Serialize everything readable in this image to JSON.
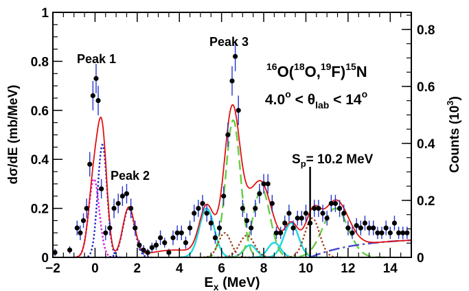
{
  "chart_data": {
    "type": "scatter",
    "xlabel": "E",
    "xlabel_sub": "x",
    "xlabel_unit": " (MeV)",
    "ylabel": "dσ/dE (mb/MeV)",
    "y2label": "Counts (10",
    "y2label_sup": "3",
    "y2label_end": ")",
    "xlim": [
      -2,
      15
    ],
    "ylim": [
      0,
      1
    ],
    "y2lim": [
      0,
      0.86
    ],
    "xticks": [
      "−2",
      "0",
      "2",
      "4",
      "6",
      "8",
      "10",
      "12",
      "14"
    ],
    "xtick_values": [
      -2,
      0,
      2,
      4,
      6,
      8,
      10,
      12,
      14
    ],
    "yticks": [
      "0",
      "0.2",
      "0.4",
      "0.6",
      "0.8",
      "1"
    ],
    "ytick_values": [
      0,
      0.2,
      0.4,
      0.6,
      0.8,
      1.0
    ],
    "y2ticks": [
      "0",
      "0.2",
      "0.4",
      "0.6",
      "0.8"
    ],
    "y2tick_values": [
      0,
      0.2,
      0.4,
      0.6,
      0.8
    ],
    "reaction_label": {
      "a": "16",
      "b": "O(",
      "c": "18",
      "d": "O,",
      "e": "19",
      "f": "F)",
      "g": "15",
      "h": "N"
    },
    "angle_label": {
      "a": "4.0",
      "b": "o",
      "c": " < θ",
      "d": "lab",
      "e": " < 14",
      "f": "o"
    },
    "annotations": {
      "peak1": "Peak 1",
      "peak2": "Peak 2",
      "peak3": "Peak 3",
      "sp_s": "S",
      "sp_sub": "p",
      "sp_rest": "= 10.2 MeV",
      "sp_x": 10.2,
      "sp_line_top": 0.4
    },
    "data_points": {
      "x": [
        -1.9,
        -1.2,
        -0.85,
        -0.7,
        -0.55,
        -0.4,
        -0.25,
        -0.1,
        0.05,
        0.15,
        0.3,
        0.5,
        0.7,
        0.9,
        1.1,
        1.3,
        1.5,
        1.7,
        1.9,
        2.1,
        2.3,
        2.5,
        2.7,
        2.9,
        3.1,
        3.3,
        3.5,
        3.7,
        3.9,
        4.1,
        4.3,
        4.5,
        4.7,
        4.9,
        5.1,
        5.3,
        5.5,
        5.7,
        5.9,
        6.1,
        6.3,
        6.5,
        6.65,
        6.8,
        7.0,
        7.2,
        7.4,
        7.6,
        7.8,
        8.0,
        8.2,
        8.4,
        8.6,
        8.8,
        9.0,
        9.2,
        9.4,
        9.6,
        9.8,
        10.0,
        10.2,
        10.4,
        10.6,
        10.8,
        11.0,
        11.2,
        11.4,
        11.6,
        11.8,
        12.0,
        12.2,
        12.4,
        12.6,
        12.8,
        13.0,
        13.2,
        13.4,
        13.6,
        13.8,
        14.0,
        14.2,
        14.4,
        14.6,
        14.8
      ],
      "y": [
        0.02,
        0.03,
        0.12,
        0.1,
        0.15,
        0.2,
        0.38,
        0.66,
        0.73,
        0.64,
        0.28,
        0.1,
        0.12,
        0.2,
        0.22,
        0.25,
        0.26,
        0.2,
        0.12,
        0.05,
        0.03,
        0.02,
        0.04,
        0.05,
        0.08,
        0.06,
        0.02,
        0.08,
        0.1,
        0.1,
        0.06,
        0.12,
        0.18,
        0.2,
        0.22,
        0.18,
        0.14,
        0.08,
        0.12,
        0.25,
        0.5,
        0.72,
        0.82,
        0.6,
        0.2,
        0.15,
        0.12,
        0.2,
        0.26,
        0.3,
        0.3,
        0.22,
        0.1,
        0.1,
        0.14,
        0.18,
        0.12,
        0.16,
        0.16,
        0.18,
        0.14,
        0.2,
        0.2,
        0.18,
        0.16,
        0.22,
        0.22,
        0.2,
        0.18,
        0.12,
        0.1,
        0.13,
        0.12,
        0.14,
        0.12,
        0.12,
        0.1,
        0.1,
        0.12,
        0.1,
        0.14,
        0.1,
        0.1,
        0.1
      ],
      "err": [
        0.015,
        0.015,
        0.03,
        0.03,
        0.03,
        0.04,
        0.05,
        0.06,
        0.06,
        0.06,
        0.04,
        0.03,
        0.03,
        0.04,
        0.04,
        0.04,
        0.04,
        0.04,
        0.03,
        0.02,
        0.02,
        0.015,
        0.02,
        0.02,
        0.03,
        0.02,
        0.015,
        0.03,
        0.03,
        0.03,
        0.025,
        0.03,
        0.035,
        0.035,
        0.035,
        0.035,
        0.03,
        0.025,
        0.03,
        0.04,
        0.05,
        0.06,
        0.06,
        0.06,
        0.035,
        0.03,
        0.03,
        0.035,
        0.04,
        0.04,
        0.04,
        0.035,
        0.025,
        0.025,
        0.03,
        0.035,
        0.03,
        0.03,
        0.03,
        0.035,
        0.03,
        0.035,
        0.035,
        0.035,
        0.03,
        0.035,
        0.035,
        0.035,
        0.035,
        0.03,
        0.025,
        0.03,
        0.03,
        0.03,
        0.03,
        0.03,
        0.025,
        0.025,
        0.03,
        0.025,
        0.03,
        0.025,
        0.025,
        0.025
      ]
    },
    "fit_components": [
      {
        "name": "",
        "style": "dotted",
        "color": "#e010e0",
        "gaussians": [
          [
            -0.05,
            0.32,
            0.25
          ]
        ]
      },
      {
        "name": "",
        "style": "dotted",
        "color": "#1a22cc",
        "gaussians": [
          [
            0.35,
            0.46,
            0.22
          ],
          [
            1.6,
            0.2,
            0.28
          ]
        ]
      },
      {
        "name": "",
        "style": "solid",
        "color": "#22d8e0",
        "gaussians": [
          [
            5.3,
            0.2,
            0.35
          ],
          [
            7.35,
            0.05,
            0.3
          ],
          [
            8.5,
            0.06,
            0.3
          ],
          [
            9.3,
            0.14,
            0.35
          ]
        ]
      },
      {
        "name": "",
        "style": "dashed",
        "color": "#66cc44",
        "gaussians": [
          [
            6.55,
            0.56,
            0.35
          ],
          [
            7.9,
            0.28,
            0.4
          ],
          [
            11.4,
            0.2,
            0.6
          ]
        ]
      },
      {
        "name": "",
        "style": "dotted",
        "color": "#a04020",
        "gaussians": [
          [
            6.15,
            0.1,
            0.3
          ],
          [
            7.2,
            0.09,
            0.35
          ],
          [
            10.3,
            0.16,
            0.35
          ]
        ]
      }
    ],
    "fit_total_color": "#e01010",
    "background_color": "#4444cc",
    "background_start": 10.2,
    "background_end_value": 0.07
  }
}
